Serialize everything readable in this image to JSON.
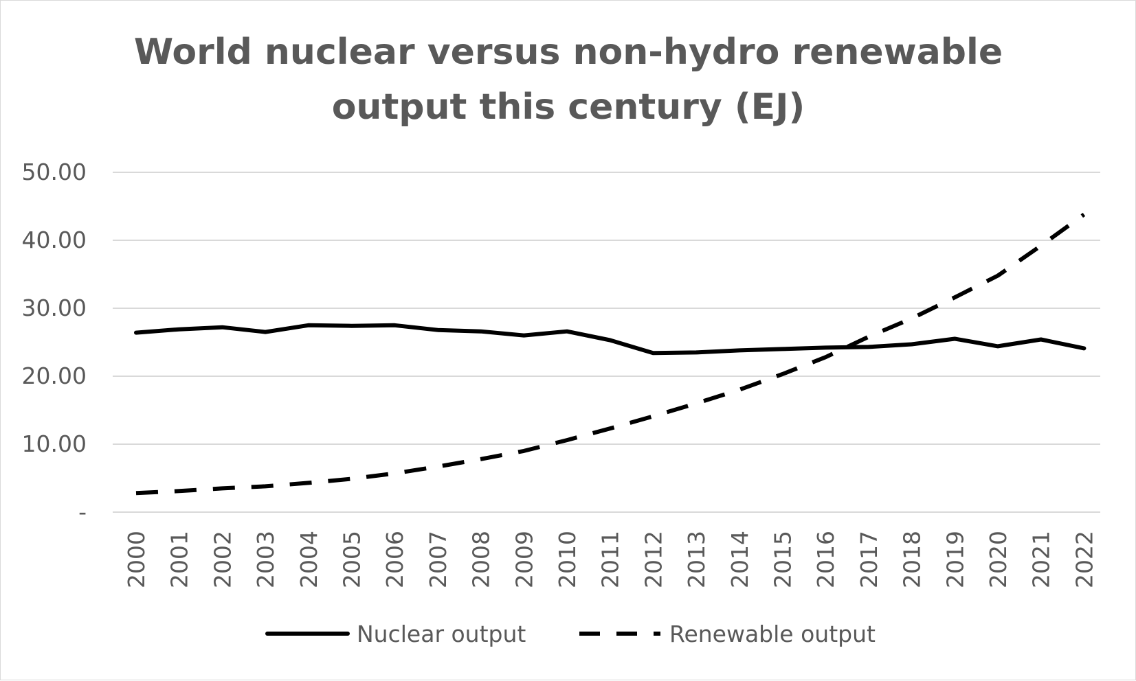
{
  "chart_data": {
    "type": "line",
    "title_lines": [
      "World nuclear versus non-hydro renewable",
      "output this century (EJ)"
    ],
    "categories": [
      "2000",
      "2001",
      "2002",
      "2003",
      "2004",
      "2005",
      "2006",
      "2007",
      "2008",
      "2009",
      "2010",
      "2011",
      "2012",
      "2013",
      "2014",
      "2015",
      "2016",
      "2017",
      "2018",
      "2019",
      "2020",
      "2021",
      "2022"
    ],
    "y_tick_labels": [
      "-",
      "10.00",
      "20.00",
      "30.00",
      "40.00",
      "50.00"
    ],
    "y_tick_values": [
      0,
      10,
      20,
      30,
      40,
      50
    ],
    "ylim": [
      0,
      50
    ],
    "grid": true,
    "legend_position": "bottom",
    "series": [
      {
        "name": "Nuclear output",
        "style": "solid",
        "color": "#000000",
        "values": [
          26.4,
          26.9,
          27.2,
          26.5,
          27.5,
          27.4,
          27.5,
          26.8,
          26.6,
          26.0,
          26.6,
          25.3,
          23.4,
          23.5,
          23.8,
          24.0,
          24.2,
          24.3,
          24.7,
          25.5,
          24.4,
          25.4,
          24.1
        ]
      },
      {
        "name": "Renewable output",
        "style": "dashed",
        "color": "#000000",
        "values": [
          2.8,
          3.1,
          3.5,
          3.8,
          4.3,
          4.9,
          5.7,
          6.7,
          7.8,
          9.0,
          10.6,
          12.3,
          14.1,
          16.0,
          18.0,
          20.3,
          22.8,
          25.8,
          28.5,
          31.6,
          34.8,
          39.2,
          43.8
        ]
      }
    ]
  }
}
